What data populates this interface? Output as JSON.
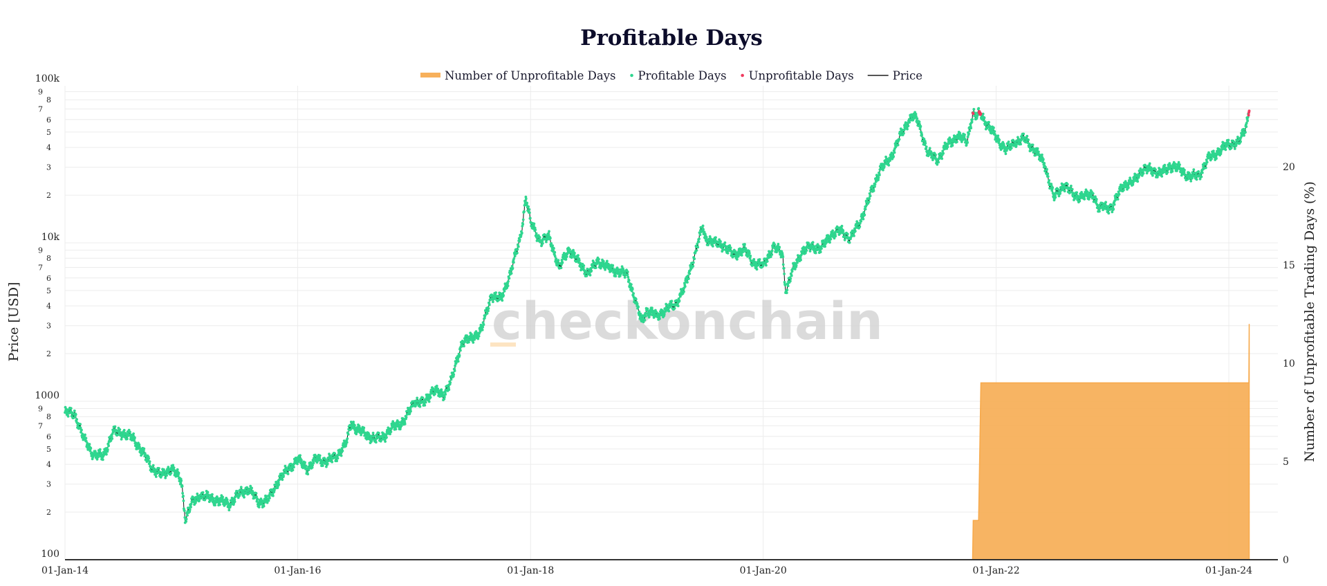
{
  "chart_data": {
    "type": "line",
    "title": "Profitable Days",
    "legend": {
      "placement": "top-center",
      "entries": [
        {
          "name": "Number of Unprofitable Days",
          "color": "#f7b05b",
          "kind": "area"
        },
        {
          "name": "Profitable Days",
          "color": "#2fd68f",
          "kind": "marker"
        },
        {
          "name": "Unprofitable Days",
          "color": "#ef3b5f",
          "kind": "marker"
        },
        {
          "name": "Price",
          "color": "#555555",
          "kind": "line"
        }
      ]
    },
    "watermark": "checkonchain",
    "x_axis": {
      "type": "date",
      "range": [
        "2014-01-01",
        "2024-03-25"
      ],
      "ticks": [
        {
          "date": "2014-01-01",
          "label": "01-Jan-14"
        },
        {
          "date": "2016-01-01",
          "label": "01-Jan-16"
        },
        {
          "date": "2018-01-01",
          "label": "01-Jan-18"
        },
        {
          "date": "2020-01-01",
          "label": "01-Jan-20"
        },
        {
          "date": "2022-01-01",
          "label": "01-Jan-22"
        },
        {
          "date": "2024-01-01",
          "label": "01-Jan-24"
        }
      ],
      "grid": true
    },
    "y_axis_left": {
      "label": "Price [USD]",
      "scale": "log",
      "range": [
        100,
        100000
      ],
      "major_ticks": [
        {
          "value": 100,
          "label": "100"
        },
        {
          "value": 1000,
          "label": "1000"
        },
        {
          "value": 10000,
          "label": "10k"
        },
        {
          "value": 100000,
          "label": "100k"
        }
      ],
      "minor_tick_labels": [
        "2",
        "3",
        "4",
        "5",
        "6",
        "7",
        "8",
        "9"
      ],
      "grid": true
    },
    "y_axis_right": {
      "label": "Number of Unprofitable Trading Days (%)",
      "scale": "linear",
      "range": [
        0,
        24
      ],
      "ticks": [
        0,
        5,
        10,
        15,
        20
      ]
    },
    "series": [
      {
        "name": "Price",
        "type": "line",
        "color": "#555555",
        "points": [
          [
            "2014-01-01",
            850
          ],
          [
            "2014-02-01",
            830
          ],
          [
            "2014-03-01",
            580
          ],
          [
            "2014-04-01",
            460
          ],
          [
            "2014-05-01",
            450
          ],
          [
            "2014-06-01",
            640
          ],
          [
            "2014-07-01",
            630
          ],
          [
            "2014-08-01",
            590
          ],
          [
            "2014-09-01",
            480
          ],
          [
            "2014-10-01",
            380
          ],
          [
            "2014-11-01",
            340
          ],
          [
            "2014-12-01",
            380
          ],
          [
            "2015-01-01",
            315
          ],
          [
            "2015-01-14",
            180
          ],
          [
            "2015-02-01",
            225
          ],
          [
            "2015-03-01",
            255
          ],
          [
            "2015-04-01",
            245
          ],
          [
            "2015-05-01",
            235
          ],
          [
            "2015-06-01",
            225
          ],
          [
            "2015-07-01",
            260
          ],
          [
            "2015-08-01",
            280
          ],
          [
            "2015-09-01",
            230
          ],
          [
            "2015-10-01",
            238
          ],
          [
            "2015-11-01",
            315
          ],
          [
            "2015-12-01",
            370
          ],
          [
            "2016-01-01",
            430
          ],
          [
            "2016-02-01",
            375
          ],
          [
            "2016-03-01",
            435
          ],
          [
            "2016-04-01",
            415
          ],
          [
            "2016-05-01",
            450
          ],
          [
            "2016-06-01",
            535
          ],
          [
            "2016-06-17",
            740
          ],
          [
            "2016-07-01",
            675
          ],
          [
            "2016-08-01",
            620
          ],
          [
            "2016-09-01",
            575
          ],
          [
            "2016-10-01",
            610
          ],
          [
            "2016-11-01",
            700
          ],
          [
            "2016-12-01",
            750
          ],
          [
            "2017-01-01",
            1000
          ],
          [
            "2017-02-01",
            970
          ],
          [
            "2017-03-01",
            1190
          ],
          [
            "2017-04-01",
            1080
          ],
          [
            "2017-05-01",
            1420
          ],
          [
            "2017-06-01",
            2400
          ],
          [
            "2017-07-01",
            2480
          ],
          [
            "2017-08-01",
            2870
          ],
          [
            "2017-09-01",
            4700
          ],
          [
            "2017-10-01",
            4400
          ],
          [
            "2017-11-01",
            6700
          ],
          [
            "2017-12-01",
            10900
          ],
          [
            "2017-12-17",
            19500
          ],
          [
            "2018-01-01",
            13500
          ],
          [
            "2018-02-01",
            10200
          ],
          [
            "2018-03-01",
            10900
          ],
          [
            "2018-04-01",
            6900
          ],
          [
            "2018-05-01",
            9200
          ],
          [
            "2018-06-01",
            7500
          ],
          [
            "2018-07-01",
            6400
          ],
          [
            "2018-08-01",
            7700
          ],
          [
            "2018-09-01",
            7000
          ],
          [
            "2018-10-01",
            6600
          ],
          [
            "2018-11-01",
            6300
          ],
          [
            "2018-12-01",
            4000
          ],
          [
            "2018-12-15",
            3200
          ],
          [
            "2019-01-01",
            3750
          ],
          [
            "2019-02-01",
            3450
          ],
          [
            "2019-03-01",
            3800
          ],
          [
            "2019-04-01",
            4100
          ],
          [
            "2019-05-01",
            5300
          ],
          [
            "2019-06-01",
            8600
          ],
          [
            "2019-06-26",
            12800
          ],
          [
            "2019-07-01",
            10800
          ],
          [
            "2019-08-01",
            10000
          ],
          [
            "2019-09-01",
            9600
          ],
          [
            "2019-10-01",
            8300
          ],
          [
            "2019-11-01",
            9200
          ],
          [
            "2019-12-01",
            7500
          ],
          [
            "2020-01-01",
            7200
          ],
          [
            "2020-02-01",
            9400
          ],
          [
            "2020-03-01",
            8600
          ],
          [
            "2020-03-12",
            4900
          ],
          [
            "2020-04-01",
            6600
          ],
          [
            "2020-05-01",
            8800
          ],
          [
            "2020-06-01",
            9500
          ],
          [
            "2020-07-01",
            9200
          ],
          [
            "2020-08-01",
            11300
          ],
          [
            "2020-09-01",
            11900
          ],
          [
            "2020-10-01",
            10600
          ],
          [
            "2020-11-01",
            13800
          ],
          [
            "2020-12-01",
            19700
          ],
          [
            "2021-01-01",
            29000
          ],
          [
            "2021-02-01",
            33500
          ],
          [
            "2021-03-01",
            45000
          ],
          [
            "2021-04-01",
            58800
          ],
          [
            "2021-04-14",
            63500
          ],
          [
            "2021-05-01",
            57800
          ],
          [
            "2021-06-01",
            36700
          ],
          [
            "2021-07-01",
            33500
          ],
          [
            "2021-08-01",
            41500
          ],
          [
            "2021-09-01",
            47100
          ],
          [
            "2021-10-01",
            43800
          ],
          [
            "2021-10-20",
            66000
          ],
          [
            "2021-11-01",
            61000
          ],
          [
            "2021-11-10",
            67500
          ],
          [
            "2021-12-01",
            57000
          ],
          [
            "2022-01-01",
            46300
          ],
          [
            "2022-02-01",
            38500
          ],
          [
            "2022-03-01",
            43200
          ],
          [
            "2022-04-01",
            45500
          ],
          [
            "2022-05-01",
            38500
          ],
          [
            "2022-06-01",
            31800
          ],
          [
            "2022-07-01",
            19300
          ],
          [
            "2022-08-01",
            23300
          ],
          [
            "2022-09-01",
            20100
          ],
          [
            "2022-10-01",
            19400
          ],
          [
            "2022-11-01",
            20500
          ],
          [
            "2022-11-21",
            15800
          ],
          [
            "2022-12-01",
            17100
          ],
          [
            "2023-01-01",
            16600
          ],
          [
            "2023-02-01",
            23100
          ],
          [
            "2023-03-01",
            23600
          ],
          [
            "2023-04-01",
            28500
          ],
          [
            "2023-05-01",
            29200
          ],
          [
            "2023-06-01",
            27200
          ],
          [
            "2023-07-01",
            30600
          ],
          [
            "2023-08-01",
            29200
          ],
          [
            "2023-09-01",
            25900
          ],
          [
            "2023-10-01",
            27000
          ],
          [
            "2023-11-01",
            34600
          ],
          [
            "2023-12-01",
            37700
          ],
          [
            "2024-01-01",
            42300
          ],
          [
            "2024-02-01",
            42600
          ],
          [
            "2024-02-20",
            52000
          ],
          [
            "2024-03-01",
            62000
          ],
          [
            "2024-03-05",
            68000
          ]
        ]
      },
      {
        "name": "Unprofitable Days",
        "type": "scatter",
        "color": "#ef3b5f",
        "points": [
          [
            "2021-10-20",
            66000
          ],
          [
            "2021-10-21",
            65500
          ],
          [
            "2021-11-08",
            66500
          ],
          [
            "2021-11-09",
            67500
          ],
          [
            "2021-11-10",
            67000
          ],
          [
            "2021-11-11",
            65000
          ],
          [
            "2021-11-12",
            64500
          ],
          [
            "2021-11-13",
            64800
          ],
          [
            "2021-11-14",
            65200
          ],
          [
            "2024-03-03",
            64000
          ],
          [
            "2024-03-04",
            66500
          ],
          [
            "2024-03-05",
            68000
          ]
        ]
      },
      {
        "name": "Number of Unprofitable Days",
        "type": "area",
        "color": "#f7b05b",
        "points": [
          [
            "2014-01-01",
            0
          ],
          [
            "2021-10-19",
            0
          ],
          [
            "2021-10-21",
            2
          ],
          [
            "2021-11-07",
            2
          ],
          [
            "2021-11-14",
            9
          ],
          [
            "2024-03-04",
            9
          ],
          [
            "2024-03-05",
            12
          ]
        ]
      }
    ]
  }
}
